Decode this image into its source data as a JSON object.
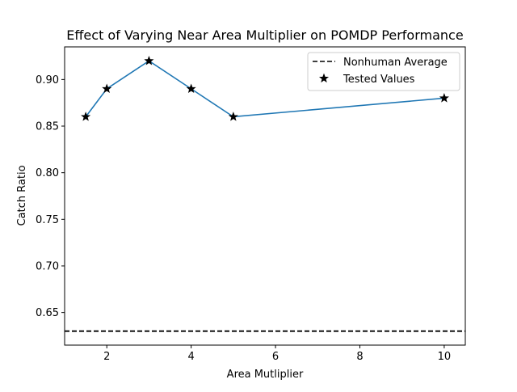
{
  "chart_data": {
    "type": "line",
    "title": "Effect of Varying Near Area Multiplier on POMDP Performance",
    "xlabel": "Area Mutliplier",
    "ylabel": "Catch Ratio",
    "xlim": [
      1.0,
      10.5
    ],
    "ylim": [
      0.615,
      0.935
    ],
    "x_ticks": [
      "2",
      "4",
      "6",
      "8",
      "10"
    ],
    "y_ticks": [
      "0.65",
      "0.70",
      "0.75",
      "0.80",
      "0.85",
      "0.90"
    ],
    "grid": false,
    "legend_position": "top-right",
    "series": [
      {
        "kind": "line-with-markers",
        "marker": "star",
        "color": "#1f77b4",
        "marker_color": "#000000",
        "x": [
          1.5,
          2,
          3,
          4,
          5,
          10
        ],
        "y": [
          0.86,
          0.89,
          0.92,
          0.89,
          0.86,
          0.88
        ]
      }
    ],
    "reference_lines": [
      {
        "name": "Nonhuman Average",
        "orientation": "horizontal",
        "value": 0.63,
        "style": "dashed",
        "color": "#000000"
      }
    ],
    "legend": [
      {
        "label": "Nonhuman Average",
        "symbol": "dashed-line"
      },
      {
        "label": "Tested Values",
        "symbol": "star"
      }
    ]
  }
}
